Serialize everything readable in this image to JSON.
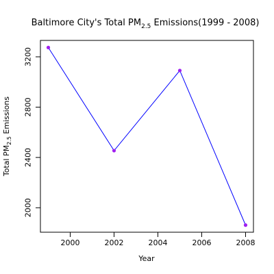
{
  "chart_data": {
    "type": "line",
    "title": {
      "prefix": "Baltimore City's Total PM",
      "subscript": "2.5",
      "suffix": " Emissions(1999 - 2008)"
    },
    "xlabel": "Year",
    "ylabel": {
      "prefix": "Total PM",
      "subscript": "2.5",
      "suffix": " Emissions"
    },
    "x": [
      1999,
      2002,
      2005,
      2008
    ],
    "series": [
      {
        "values": [
          3274,
          2454,
          3091,
          1862
        ]
      }
    ],
    "xlim": [
      1998.64,
      2008.36
    ],
    "ylim": [
      1805.5,
      3330.5
    ],
    "xticks": [
      2000,
      2002,
      2004,
      2006,
      2008
    ],
    "yticks": [
      2000,
      2400,
      2800,
      3200
    ],
    "colors": {
      "line": "#0000ff",
      "points": "#a020f0"
    },
    "grid": false,
    "legend": "none"
  }
}
